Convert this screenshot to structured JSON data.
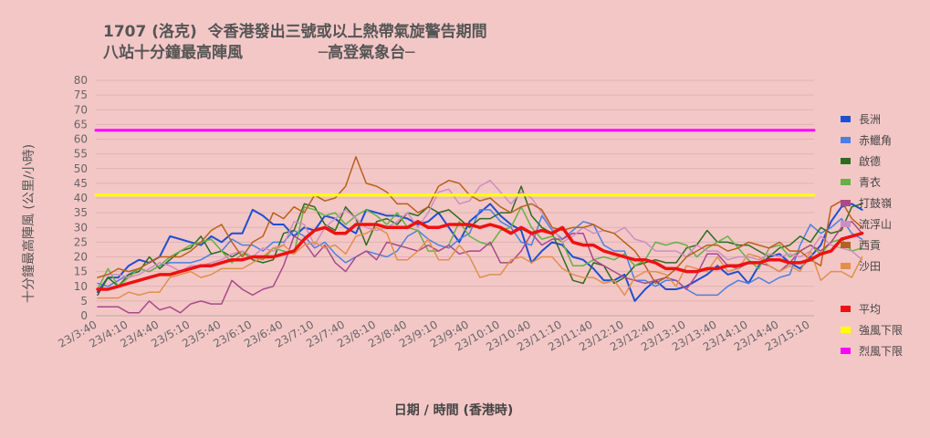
{
  "chart_data": {
    "type": "line",
    "title_line1": "1707 (洛克)  令香港發出三號或以上熱帶氣旋警告期間",
    "title_line2": "八站十分鐘最高陣風              ─高登氣象台─",
    "xlabel": "日期  /  時間  (香港時)",
    "ylabel": "十分鐘最高陣風 (公里/小時)",
    "ylim": [
      0,
      80
    ],
    "yticks": [
      0,
      5,
      10,
      15,
      20,
      25,
      30,
      35,
      40,
      45,
      50,
      55,
      60,
      65,
      70,
      75,
      80
    ],
    "grid": true,
    "legend_position": "right",
    "x_labels": [
      "23/3:40",
      "23/4:10",
      "23/4:40",
      "23/5:10",
      "23/5:40",
      "23/6:10",
      "23/6:40",
      "23/7:10",
      "23/7:40",
      "23/8:10",
      "23/8:40",
      "23/9:10",
      "23/9:40",
      "23/10:10",
      "23/10:40",
      "23/11:10",
      "23/11:40",
      "23/12:10",
      "23/12:40",
      "23/13:10",
      "23/13:40",
      "23/14:10",
      "23/14:40",
      "23/15:10"
    ],
    "points_per_label": 3,
    "series": [
      {
        "name": "長洲",
        "color": "#1f4fd0",
        "width": 2,
        "values": [
          8,
          13,
          13,
          17,
          19,
          18,
          20,
          27,
          26,
          25,
          24,
          27,
          25,
          28,
          28,
          36,
          34,
          31,
          31,
          27,
          30,
          29,
          34,
          33,
          30,
          28,
          36,
          35,
          34,
          34,
          33,
          31,
          32,
          35,
          30,
          25,
          32,
          35,
          38,
          34,
          31,
          29,
          18,
          22,
          25,
          24,
          20,
          19,
          16,
          12,
          12,
          14,
          5,
          9,
          12,
          9,
          9,
          10,
          12,
          14,
          17,
          14,
          15,
          11,
          17,
          20,
          21,
          18,
          16,
          20,
          24,
          32,
          37,
          38,
          36
        ]
      },
      {
        "name": "赤鱲角",
        "color": "#4b80e0",
        "width": 1.5,
        "values": [
          11,
          10,
          12,
          14,
          16,
          15,
          17,
          18,
          18,
          18,
          19,
          21,
          22,
          26,
          24,
          24,
          22,
          25,
          25,
          29,
          27,
          23,
          25,
          21,
          18,
          20,
          22,
          21,
          20,
          22,
          27,
          29,
          26,
          24,
          23,
          26,
          28,
          36,
          36,
          32,
          30,
          25,
          24,
          34,
          29,
          26,
          29,
          32,
          31,
          24,
          22,
          22,
          12,
          12,
          10,
          12,
          12,
          9,
          7,
          7,
          7,
          10,
          12,
          11,
          13,
          11,
          13,
          14,
          24,
          31,
          28,
          30,
          33,
          28,
          26
        ]
      },
      {
        "name": "啟德",
        "color": "#2e6b1e",
        "width": 1.5,
        "values": [
          7,
          13,
          10,
          14,
          15,
          20,
          16,
          19,
          22,
          23,
          27,
          21,
          22,
          20,
          22,
          19,
          18,
          19,
          28,
          29,
          38,
          37,
          31,
          29,
          37,
          33,
          24,
          32,
          33,
          31,
          35,
          34,
          37,
          35,
          36,
          33,
          30,
          33,
          33,
          35,
          35,
          44,
          34,
          30,
          28,
          20,
          12,
          11,
          18,
          17,
          11,
          13,
          17,
          18,
          19,
          18,
          18,
          23,
          24,
          29,
          25,
          25,
          24,
          24,
          22,
          20,
          23,
          24,
          27,
          25,
          30,
          28,
          29,
          37,
          38
        ]
      },
      {
        "name": "青衣",
        "color": "#66b045",
        "width": 1.5,
        "values": [
          9,
          16,
          10,
          13,
          16,
          15,
          17,
          20,
          22,
          24,
          25,
          26,
          22,
          18,
          21,
          20,
          19,
          23,
          22,
          21,
          37,
          36,
          34,
          35,
          31,
          34,
          36,
          34,
          31,
          35,
          30,
          29,
          22,
          22,
          24,
          32,
          27,
          25,
          24,
          29,
          30,
          37,
          30,
          26,
          27,
          25,
          17,
          17,
          19,
          20,
          19,
          21,
          17,
          19,
          25,
          24,
          25,
          24,
          20,
          23,
          25,
          27,
          23,
          19,
          16,
          23,
          24,
          20,
          22,
          24,
          21,
          25,
          26,
          22,
          23
        ]
      },
      {
        "name": "打鼓嶺",
        "color": "#a84a8a",
        "width": 1.5,
        "values": [
          3,
          3,
          3,
          1,
          1,
          5,
          2,
          3,
          1,
          4,
          5,
          4,
          4,
          12,
          9,
          7,
          9,
          10,
          17,
          27,
          25,
          20,
          24,
          18,
          15,
          20,
          22,
          19,
          25,
          24,
          23,
          22,
          24,
          22,
          24,
          21,
          22,
          22,
          25,
          18,
          18,
          22,
          28,
          24,
          26,
          26,
          28,
          28,
          19,
          17,
          15,
          13,
          12,
          11,
          12,
          13,
          12,
          9,
          14,
          21,
          21,
          17,
          16,
          18,
          18,
          17,
          15,
          18,
          22,
          24,
          22,
          25,
          30,
          32,
          28
        ]
      },
      {
        "name": "流浮山",
        "color": "#cc8ec0",
        "width": 1.5,
        "values": [
          13,
          14,
          14,
          13,
          14,
          16,
          18,
          17,
          15,
          17,
          17,
          18,
          19,
          21,
          22,
          20,
          23,
          22,
          24,
          32,
          31,
          24,
          30,
          33,
          36,
          33,
          30,
          29,
          30,
          32,
          35,
          30,
          35,
          42,
          43,
          38,
          39,
          44,
          46,
          42,
          38,
          42,
          40,
          35,
          30,
          25,
          27,
          30,
          28,
          29,
          28,
          30,
          26,
          25,
          22,
          22,
          22,
          20,
          24,
          22,
          22,
          19,
          20,
          20,
          19,
          21,
          20,
          21,
          20,
          22,
          27,
          24,
          23,
          22,
          19
        ]
      },
      {
        "name": "西貢",
        "color": "#b8611a",
        "width": 1.5,
        "values": [
          13,
          14,
          16,
          15,
          16,
          18,
          20,
          20,
          20,
          22,
          25,
          29,
          31,
          25,
          20,
          25,
          27,
          35,
          33,
          37,
          35,
          41,
          39,
          40,
          44,
          54,
          45,
          44,
          42,
          38,
          38,
          35,
          37,
          44,
          46,
          45,
          41,
          39,
          40,
          37,
          35,
          37,
          38,
          36,
          30,
          29,
          30,
          30,
          31,
          29,
          28,
          25,
          22,
          17,
          11,
          13,
          16,
          20,
          22,
          24,
          24,
          22,
          23,
          25,
          24,
          23,
          25,
          22,
          22,
          19,
          17,
          37,
          39,
          33,
          30
        ]
      },
      {
        "name": "沙田",
        "color": "#e0904a",
        "width": 1.5,
        "values": [
          6,
          6,
          6,
          8,
          7,
          8,
          8,
          13,
          14,
          15,
          13,
          14,
          16,
          16,
          16,
          18,
          20,
          23,
          24,
          21,
          24,
          25,
          23,
          24,
          21,
          27,
          28,
          30,
          28,
          19,
          19,
          22,
          26,
          19,
          19,
          24,
          20,
          13,
          14,
          14,
          19,
          20,
          18,
          20,
          20,
          16,
          14,
          13,
          13,
          11,
          12,
          7,
          13,
          15,
          15,
          14,
          10,
          17,
          16,
          15,
          20,
          15,
          16,
          21,
          20,
          17,
          15,
          17,
          15,
          22,
          12,
          15,
          15,
          13,
          20
        ]
      },
      {
        "name": "平均",
        "color": "#ee1111",
        "width": 3.5,
        "values": [
          9,
          9,
          10,
          11,
          12,
          13,
          14,
          14,
          15,
          16,
          17,
          17,
          18,
          19,
          19,
          20,
          20,
          20,
          21,
          22,
          26,
          29,
          30,
          28,
          28,
          31,
          31,
          31,
          30,
          30,
          30,
          32,
          30,
          30,
          31,
          31,
          31,
          30,
          31,
          30,
          28,
          30,
          28,
          29,
          28,
          30,
          25,
          24,
          24,
          22,
          21,
          20,
          19,
          19,
          18,
          16,
          16,
          15,
          15,
          16,
          16,
          17,
          17,
          18,
          18,
          19,
          19,
          18,
          18,
          19,
          21,
          22,
          26,
          27,
          28
        ]
      },
      {
        "name": "強風下限",
        "color": "#ffff00",
        "width": 3,
        "values": [
          41,
          41
        ]
      },
      {
        "name": "烈風下限",
        "color": "#ff00ff",
        "width": 3,
        "values": [
          63,
          63
        ]
      }
    ]
  }
}
